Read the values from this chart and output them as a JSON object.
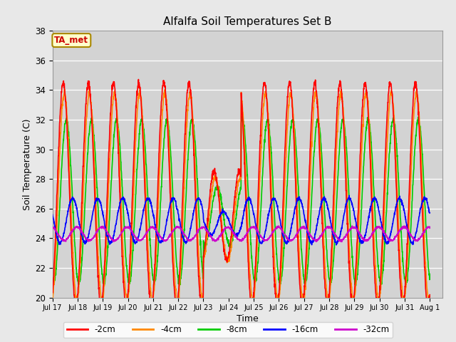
{
  "title": "Alfalfa Soil Temperatures Set B",
  "xlabel": "Time",
  "ylabel": "Soil Temperature (C)",
  "ylim": [
    20,
    38
  ],
  "xlim": [
    0,
    15.5
  ],
  "background_color": "#e8e8e8",
  "plot_bg_color": "#d3d3d3",
  "series_colors": {
    "-2cm": "#ff0000",
    "-4cm": "#ff8800",
    "-8cm": "#00cc00",
    "-16cm": "#0000ff",
    "-32cm": "#cc00cc"
  },
  "ta_met_label": "TA_met",
  "ta_met_bg": "#ffffcc",
  "ta_met_border": "#aa8800",
  "xtick_labels": [
    "Jul 17",
    "Jul 18",
    "Jul 19",
    "Jul 20",
    "Jul 21",
    "Jul 22",
    "Jul 23",
    "Jul 24",
    "Jul 25",
    "Jul 26",
    "Jul 27",
    "Jul 28",
    "Jul 29",
    "Jul 30",
    "Jul 31",
    "Aug 1"
  ]
}
